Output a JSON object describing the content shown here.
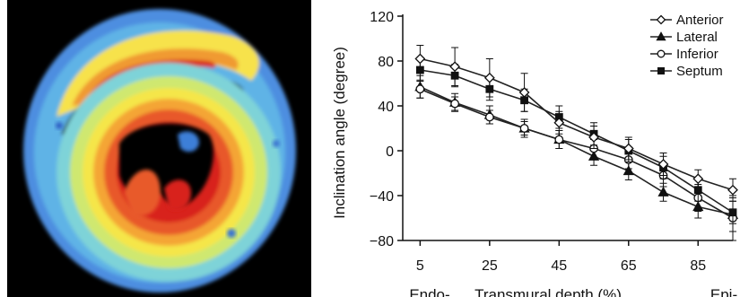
{
  "chart_data": {
    "type": "line",
    "title": "",
    "xlabel": "Transmural depth (%)",
    "ylabel": "Inclination angle (degree)",
    "x_end_labels": [
      "Endo-",
      "Epi-"
    ],
    "xlim": [
      0,
      95
    ],
    "ylim": [
      -80,
      120
    ],
    "x_ticks": [
      5,
      25,
      45,
      65,
      85
    ],
    "y_ticks": [
      120,
      80,
      40,
      0,
      -40,
      -80
    ],
    "x": [
      5,
      15,
      25,
      35,
      45,
      55,
      65,
      75,
      85,
      95
    ],
    "legend_position": "top-right",
    "series": [
      {
        "name": "Anterior",
        "marker": "diamond-open",
        "values": [
          82,
          75,
          65,
          52,
          25,
          12,
          2,
          -12,
          -25,
          -35
        ],
        "errors": [
          12,
          17,
          17,
          17,
          10,
          10,
          10,
          10,
          8,
          10
        ]
      },
      {
        "name": "Lateral",
        "marker": "triangle-filled",
        "values": [
          57,
          43,
          32,
          20,
          10,
          -5,
          -18,
          -37,
          -50,
          -57
        ],
        "errors": [
          10,
          8,
          8,
          8,
          8,
          8,
          8,
          8,
          10,
          15
        ]
      },
      {
        "name": "Inferior",
        "marker": "circle-open",
        "values": [
          55,
          42,
          30,
          20,
          10,
          2,
          -8,
          -22,
          -42,
          -60
        ],
        "errors": [
          8,
          6,
          6,
          6,
          8,
          8,
          8,
          10,
          12,
          20
        ]
      },
      {
        "name": "Septum",
        "marker": "square-filled",
        "values": [
          72,
          67,
          55,
          45,
          30,
          15,
          0,
          -15,
          -35,
          -55
        ],
        "errors": [
          10,
          10,
          10,
          10,
          10,
          10,
          10,
          10,
          10,
          10
        ]
      }
    ]
  }
}
